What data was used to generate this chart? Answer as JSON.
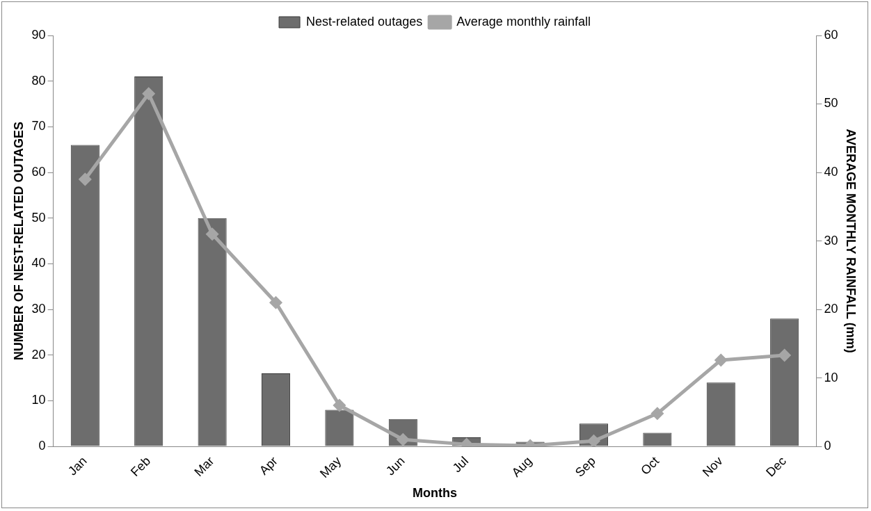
{
  "chart_data": {
    "type": "bar",
    "xlabel": "Months",
    "ylabel": "NUMBER OF NEST-RELATED OUTAGES",
    "y2label": "AVERAGE MONTHLY RAINFALL (mm)",
    "categories": [
      "Jan",
      "Feb",
      "Mar",
      "Apr",
      "May",
      "Jun",
      "Jul",
      "Aug",
      "Sep",
      "Oct",
      "Nov",
      "Dec"
    ],
    "series": [
      {
        "name": "Nest-related outages",
        "color": "#6d6d6d",
        "values": [
          66,
          81,
          50,
          16,
          8,
          6,
          2,
          1,
          5,
          3,
          14,
          28
        ]
      },
      {
        "name": "Average monthly rainfall",
        "type": "line",
        "axis": "y2",
        "color": "#a6a6a6",
        "marker": "diamond",
        "values": [
          39,
          51.5,
          31,
          21,
          6,
          1,
          0.3,
          0.1,
          0.8,
          4.8,
          12.6,
          13.3
        ]
      }
    ],
    "ylim": [
      0,
      90
    ],
    "yticks": [
      0,
      10,
      20,
      30,
      40,
      50,
      60,
      70,
      80,
      90
    ],
    "y2lim": [
      0,
      60
    ],
    "y2ticks": [
      0,
      10,
      20,
      30,
      40,
      50,
      60
    ],
    "grid": false,
    "legend": "top"
  }
}
